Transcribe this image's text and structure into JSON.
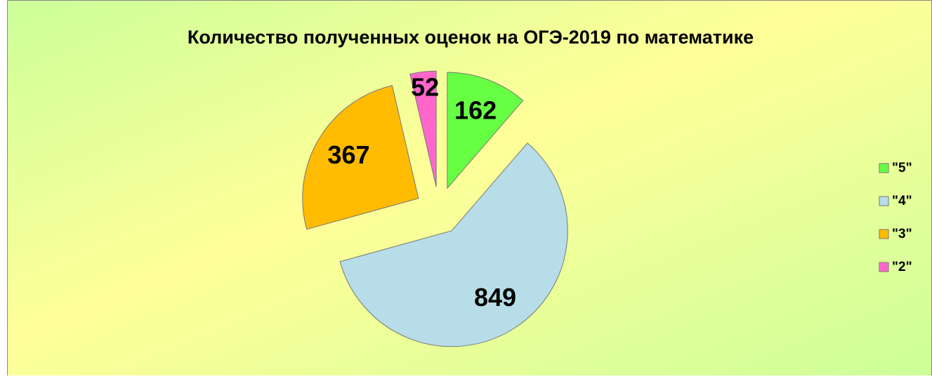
{
  "chart_data": {
    "type": "pie",
    "title": "Количество полученных оценок на ОГЭ-2019 по математике",
    "categories": [
      "\"5\"",
      "\"4\"",
      "\"3\"",
      "\"2\""
    ],
    "values": [
      162,
      849,
      367,
      52
    ],
    "colors": [
      "#66ff44",
      "#b7dde8",
      "#ffbb00",
      "#ff66cc"
    ],
    "legend": "right"
  }
}
